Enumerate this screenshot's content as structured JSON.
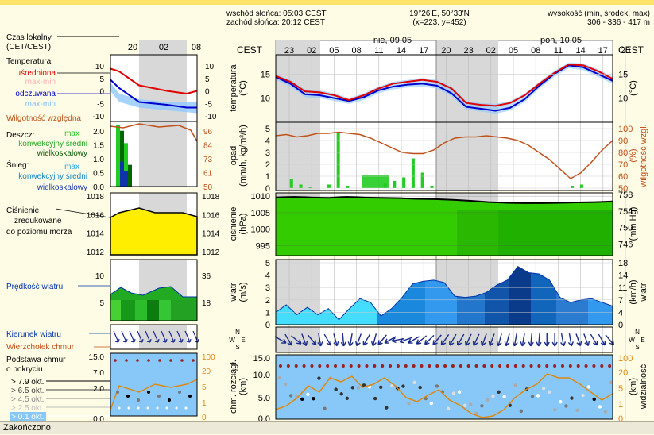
{
  "header": {
    "sunrise": "wschód słońca: 05:03 CEST",
    "sunset": "zachód słońca: 20:12 CEST",
    "coords": "19°26'E, 50°33'N",
    "grid": "(x=223, y=452)",
    "elev_label": "wysokość (min, środek, max)",
    "elev_values": "306 - 336 - 417 m"
  },
  "status_text": "Zakończono",
  "colors": {
    "temp_avg": "#e00000",
    "temp_feel": "#0000cc",
    "temp_range": "#ffb0b0",
    "temp_feel_range": "#90c8ff",
    "humidity": "#c05018",
    "rain_conv": "#22cc22",
    "rain_large": "#006600",
    "snow_conv": "#22aaee",
    "snow_large": "#1133aa",
    "pressure_fill": "#ffee00",
    "pressure_fill_main": "#33cc00",
    "wind_light": "#33ee66",
    "wind_main": "#0077dd",
    "cloud_bg": "#88c8f8",
    "cloud_top": "#dd8811"
  },
  "left_panel": {
    "time_label_1": "Czas lokalny",
    "time_label_2": "(CET/CEST)",
    "time_ticks": [
      "20",
      "02",
      "08"
    ],
    "temp_title": "Temperatura:",
    "temp_avg": "uśredniona",
    "temp_avg_range": "max-min",
    "temp_feel": "odczuwana",
    "temp_feel_range": "max-min",
    "humidity": "Wilgotność względna",
    "rain_title": "Deszcz:",
    "rain_max": "max",
    "rain_conv": "konwekcyjny średni",
    "rain_large": "wielkoskalowy",
    "snow_title": "Śnieg:",
    "snow_max": "max",
    "snow_conv": "konwekcyjny średni",
    "snow_large": "wielkoskalowy",
    "pressure_1": "Ciśnienie",
    "pressure_2": "zredukowane",
    "pressure_3": "do poziomu morza",
    "wind_speed": "Prędkość wiatru",
    "wind_dir": "Kierunek wiatru",
    "cloud_top": "Wierzchołek chmur",
    "cloud_base_1": "Podstawa chmur",
    "cloud_base_2": "o pokryciu",
    "cover_levels": [
      "> 7.9 okt.",
      "> 6.5 okt.",
      "> 4.5 okt.",
      "> 2.5 okt.",
      "> 0.1 okt."
    ]
  },
  "main": {
    "tz_left": "CEST",
    "tz_right": "CEST",
    "day1": "nie, 09.05",
    "day2": "pon, 10.05",
    "hours": [
      "23",
      "02",
      "05",
      "08",
      "11",
      "14",
      "17",
      "20",
      "23",
      "02",
      "05",
      "08",
      "11",
      "14",
      "17",
      "20"
    ],
    "labels": {
      "temp": "temperatura",
      "temp_unit": "(°C)",
      "rain": "opad",
      "rain_unit": "(mm/h, kg/m²/h)",
      "humid": "wilgotność wzgl.",
      "humid_unit": "(%)",
      "press": "ciśnienie",
      "press_unit": "(hPa)",
      "press_unit_r": "(mm Hg)",
      "wind": "wiatr",
      "wind_unit": "(m/s)",
      "wind_unit_r": "(km/h)",
      "cloud": "chm. rozciągł.",
      "cloud_unit": "(km)",
      "vis": "widzialność",
      "vis_unit": "(km)",
      "compass_n": "N",
      "compass_w": "W",
      "compass_e": "E",
      "compass_s": "S"
    }
  },
  "chart_data": [
    {
      "type": "line",
      "name": "temperature",
      "ylim": [
        5,
        19
      ],
      "y_ticks": [
        "15",
        "10"
      ],
      "series": [
        {
          "name": "uśredniona",
          "values": [
            14.6,
            13.4,
            11.4,
            11.2,
            10.6,
            9.6,
            10.6,
            12.0,
            13.0,
            13.4,
            13.8,
            13.4,
            12.0,
            9.0,
            8.6,
            8.4,
            9.0,
            10.6,
            13.0,
            15.2,
            17.0,
            16.8,
            15.6,
            14.0
          ]
        },
        {
          "name": "odczuwana",
          "values": [
            14.4,
            13.0,
            10.8,
            10.6,
            10.0,
            9.4,
            10.2,
            11.6,
            12.4,
            12.8,
            13.0,
            12.6,
            11.0,
            8.2,
            7.8,
            7.4,
            8.0,
            9.8,
            12.6,
            15.0,
            16.8,
            16.4,
            15.0,
            13.6
          ]
        }
      ]
    },
    {
      "type": "bar",
      "name": "precipitation",
      "ylim": [
        0,
        5
      ],
      "y_ticks": [
        "5",
        "4",
        "3",
        "2",
        "1",
        "0"
      ],
      "y2_ticks": [
        "100",
        "90",
        "80",
        "70",
        "60",
        "50"
      ],
      "rain": [
        0,
        0.8,
        0.3,
        0.1,
        0,
        0.3,
        4.6,
        0.2,
        0,
        0,
        0,
        0.4,
        0.6,
        0.9,
        2.5,
        1.3,
        0.2,
        0,
        0,
        0,
        0,
        0,
        0,
        0,
        0,
        0,
        0,
        0,
        0,
        0,
        0,
        0.2,
        0.3,
        0,
        0,
        0
      ],
      "humidity": [
        94,
        95,
        93,
        94,
        96,
        96,
        97,
        96,
        95,
        92,
        88,
        84,
        80,
        79,
        79,
        82,
        88,
        92,
        93,
        93,
        94,
        93,
        92,
        90,
        86,
        80,
        74,
        66,
        58,
        63,
        72,
        82,
        90
      ]
    },
    {
      "type": "area",
      "name": "pressure",
      "ylim": [
        992,
        1011
      ],
      "y_ticks": [
        "1010",
        "1005",
        "1000",
        "995"
      ],
      "y2_ticks": [
        "758",
        "754",
        "750",
        "746"
      ],
      "values": [
        1009.6,
        1009.8,
        1009.6,
        1009.5,
        1009.8,
        1009.6,
        1009.5,
        1009.4,
        1009.2,
        1009.1,
        1008.9,
        1008.6,
        1008.2,
        1008.0,
        1007.9,
        1007.9,
        1008.0,
        1008.1,
        1008.2,
        1008.4
      ]
    },
    {
      "type": "area",
      "name": "wind",
      "ylim": [
        0,
        5
      ],
      "y_ticks": [
        "5",
        "4",
        "3",
        "2",
        "1",
        "0"
      ],
      "y2_ticks": [
        "18",
        "14",
        "11",
        "7",
        "4",
        "0"
      ],
      "values": [
        1.0,
        1.6,
        0.8,
        1.4,
        0.8,
        1.3,
        0.4,
        1.3,
        2.1,
        1.8,
        0.7,
        1.3,
        2.2,
        3.3,
        3.5,
        3.6,
        3.4,
        2.3,
        2.2,
        2.3,
        2.6,
        3.2,
        3.6,
        4.7,
        4.2,
        4.1,
        3.6,
        2.2,
        1.8,
        2.0,
        2.1,
        1.8,
        1.5
      ]
    },
    {
      "type": "scatter",
      "name": "clouds",
      "ylim": [
        0,
        15
      ],
      "y_ticks": [
        "15.0",
        "10.0",
        "5.0",
        "0.0"
      ],
      "y2_ticks": [
        "100",
        "20",
        "5",
        "1",
        "0"
      ]
    }
  ],
  "left_charts": {
    "temp_ticks": [
      "10",
      "5",
      "0",
      "-5",
      "-10"
    ],
    "rain_ticks": [
      "2.0",
      "1.5",
      "1.0",
      "0.5",
      "0.0"
    ],
    "humid_ticks": [
      "96",
      "84",
      "73",
      "61",
      "50"
    ],
    "press_ticks": [
      "1018",
      "1016",
      "1014",
      "1012"
    ],
    "wind_ticks": [
      "10",
      "5"
    ],
    "wind_ticks_r": [
      "36",
      "18"
    ],
    "cloud_ticks": [
      "15.0",
      "7.0",
      "2.0",
      "0.0"
    ],
    "cloud_ticks_r": [
      "100",
      "20",
      "5",
      "1",
      "0"
    ]
  }
}
